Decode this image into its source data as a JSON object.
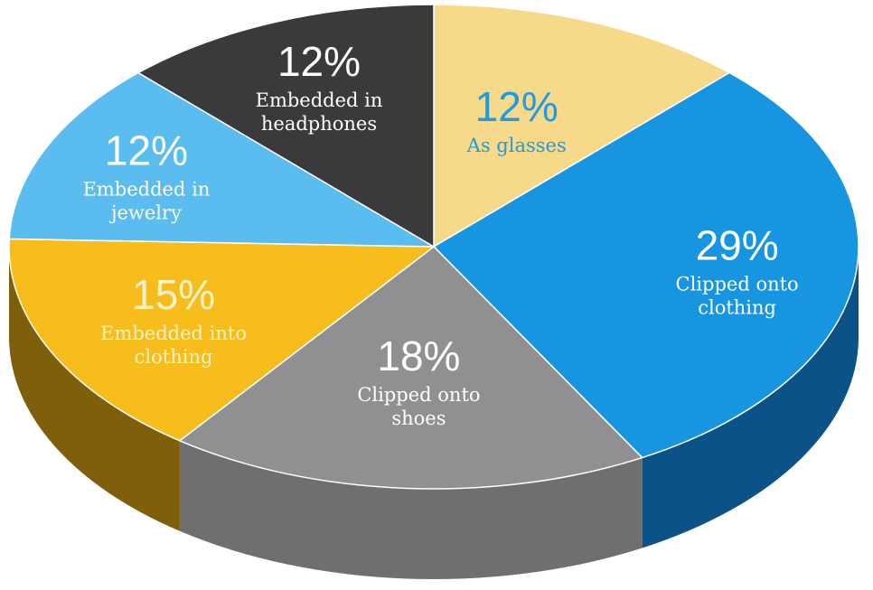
{
  "chart_data": {
    "type": "pie",
    "title": "",
    "slices": [
      {
        "label": "As glasses",
        "pct_label": "12%",
        "value": 12,
        "color": "#f7d98a",
        "side_color": "#b89a4a",
        "text_color": "#1e9be3"
      },
      {
        "label": "Clipped onto clothing",
        "pct_label": "29%",
        "value": 29,
        "color": "#1795e0",
        "side_color": "#0a5287",
        "text_color": "#ffffff"
      },
      {
        "label": "Clipped onto shoes",
        "pct_label": "18%",
        "value": 18,
        "color": "#909092",
        "side_color": "#6f6f71",
        "text_color": "#ffffff"
      },
      {
        "label": "Embedded into clothing",
        "pct_label": "15%",
        "value": 15,
        "color": "#f7bd1c",
        "side_color": "#7f5e0c",
        "text_color": "#fff3cc"
      },
      {
        "label": "Embedded in jewelry",
        "pct_label": "12%",
        "value": 12,
        "color": "#5bbcf0",
        "side_color": "#2d7eb0",
        "text_color": "#ffffff"
      },
      {
        "label": "Embedded in headphones",
        "pct_label": "12%",
        "value": 12,
        "color": "#3a3a3c",
        "side_color": "#242426",
        "text_color": "#ffffff"
      }
    ]
  }
}
